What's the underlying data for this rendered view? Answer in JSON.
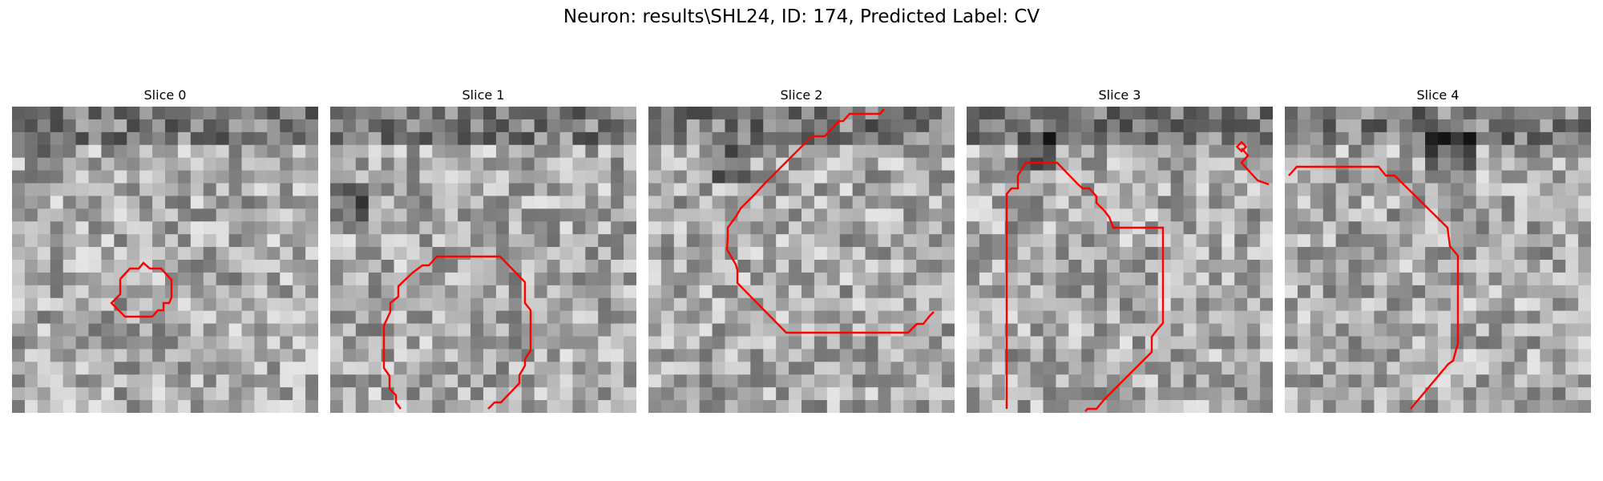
{
  "figure": {
    "title": "Neuron: results\\SHL24, ID: 174, Predicted Label: CV"
  },
  "panels": [
    {
      "title": "Slice 0"
    },
    {
      "title": "Slice 1"
    },
    {
      "title": "Slice 2"
    },
    {
      "title": "Slice 3"
    },
    {
      "title": "Slice 4"
    }
  ],
  "colors": {
    "contour": "#ff0000",
    "image_light": "#e6e6e6",
    "image_dark": "#141414"
  }
}
